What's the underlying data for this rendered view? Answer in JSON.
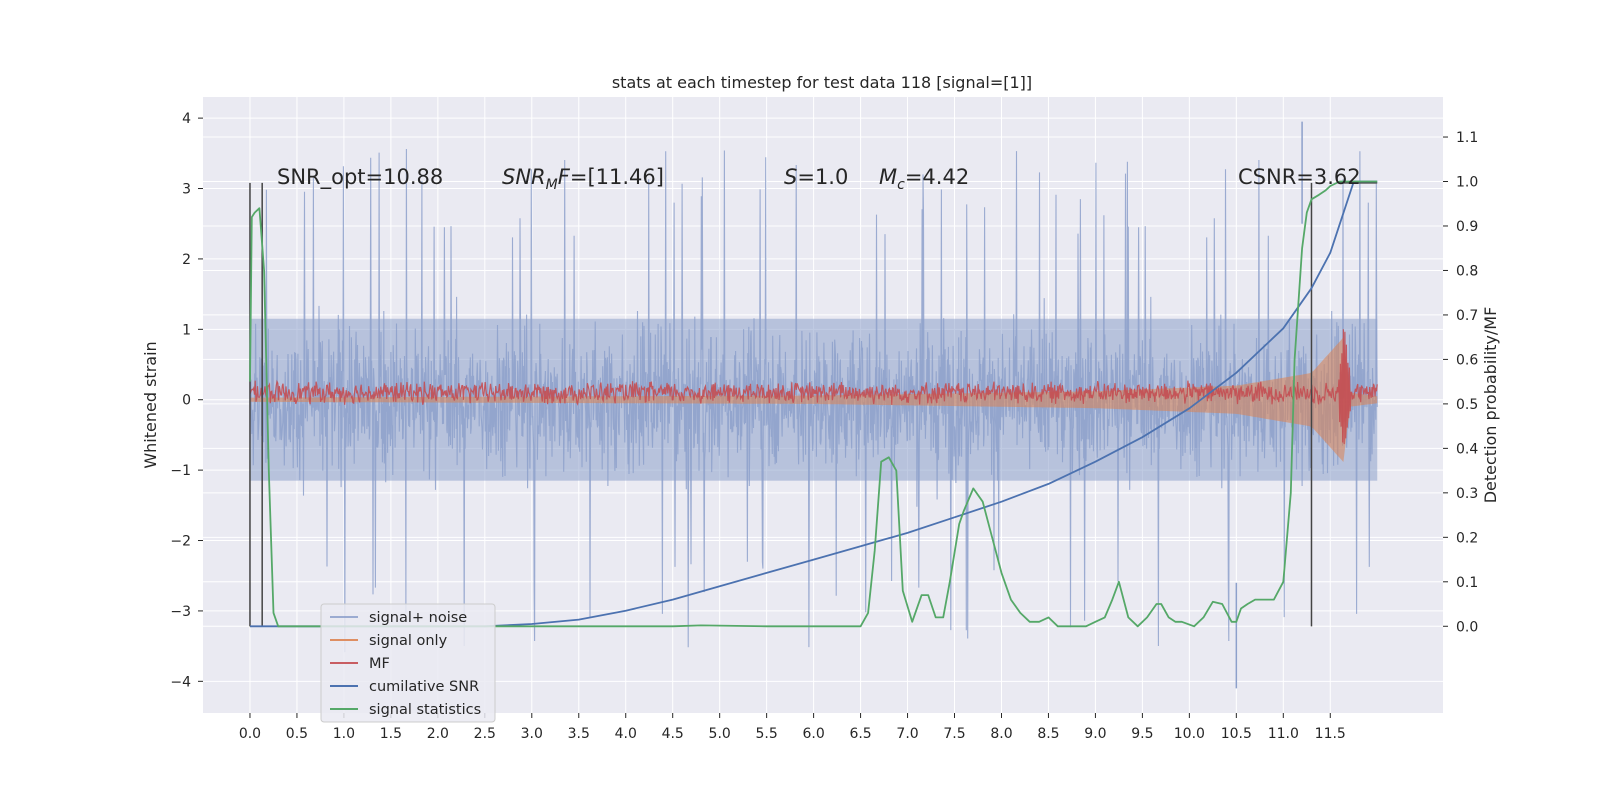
{
  "chart_data": {
    "type": "line",
    "title": "stats at each timestep for test data 118 [signal=[1]]",
    "xlabel": "",
    "ylabel": "Whitened strain",
    "y2label": "Detection probability/MF",
    "xlim": [
      -0.5,
      12.7
    ],
    "ylim": [
      -4.45,
      4.3
    ],
    "y2lim": [
      -0.195,
      1.19
    ],
    "xticks": [
      0.0,
      0.5,
      1.0,
      1.5,
      2.0,
      2.5,
      3.0,
      3.5,
      4.0,
      4.5,
      5.0,
      5.5,
      6.0,
      6.5,
      7.0,
      7.5,
      8.0,
      8.5,
      9.0,
      9.5,
      10.0,
      10.5,
      11.0,
      11.5
    ],
    "xtick_labels": [
      "0.0",
      "0.5",
      "1.0",
      "1.5",
      "2.0",
      "2.5",
      "3.0",
      "3.5",
      "4.0",
      "4.5",
      "5.0",
      "5.5",
      "6.0",
      "6.5",
      "7.0",
      "7.5",
      "8.0",
      "8.5",
      "9.0",
      "9.5",
      "10.0",
      "10.5",
      "11.0",
      "11.5"
    ],
    "yticks": [
      -4,
      -3,
      -2,
      -1,
      0,
      1,
      2,
      3,
      4
    ],
    "ytick_labels": [
      "−4",
      "−3",
      "−2",
      "−1",
      "0",
      "1",
      "2",
      "3",
      "4"
    ],
    "y2ticks": [
      0.0,
      0.1,
      0.2,
      0.3,
      0.4,
      0.5,
      0.6,
      0.7,
      0.8,
      0.9,
      1.0,
      1.1
    ],
    "y2tick_labels": [
      "0.0",
      "0.1",
      "0.2",
      "0.3",
      "0.4",
      "0.5",
      "0.6",
      "0.7",
      "0.8",
      "0.9",
      "1.0",
      "1.1"
    ],
    "grid": true,
    "legend_position": "lower-left",
    "series": [
      {
        "name": "signal+ noise",
        "axis": "left",
        "style": "dense-noise",
        "color": "#8da0cb",
        "x_range": [
          0.0,
          12.0
        ],
        "typical_range": [
          -1.5,
          1.5
        ],
        "extremes": [
          -4.1,
          3.95
        ]
      },
      {
        "name": "signal only",
        "axis": "left",
        "style": "envelope",
        "color": "#dd8452",
        "x_range": [
          0.0,
          12.0
        ],
        "amplitude": [
          [
            0.0,
            0.03
          ],
          [
            6.0,
            0.06
          ],
          [
            9.0,
            0.12
          ],
          [
            10.5,
            0.2
          ],
          [
            11.3,
            0.38
          ],
          [
            11.65,
            0.9
          ],
          [
            11.7,
            0.1
          ],
          [
            12.0,
            0.05
          ]
        ]
      },
      {
        "name": "MF",
        "axis": "left",
        "style": "noise-band",
        "color": "#c44e52",
        "x_range": [
          0.0,
          12.0
        ],
        "center": 0.1,
        "half_width": 0.12,
        "peak": {
          "x": 11.65,
          "y": 1.0
        }
      },
      {
        "name": "cumilative SNR",
        "axis": "right",
        "style": "line",
        "color": "#4c72b0",
        "x": [
          0.0,
          1.0,
          2.0,
          2.5,
          3.0,
          3.5,
          4.0,
          4.5,
          5.0,
          5.5,
          6.0,
          6.5,
          7.0,
          7.5,
          8.0,
          8.5,
          9.0,
          9.5,
          10.0,
          10.5,
          11.0,
          11.3,
          11.5,
          11.75,
          12.0
        ],
        "y": [
          0.0,
          0.0,
          0.0,
          0.0,
          0.005,
          0.015,
          0.035,
          0.06,
          0.09,
          0.12,
          0.15,
          0.18,
          0.21,
          0.245,
          0.28,
          0.32,
          0.37,
          0.425,
          0.49,
          0.57,
          0.67,
          0.76,
          0.84,
          1.0,
          1.0
        ]
      },
      {
        "name": "signal statistics",
        "axis": "right",
        "style": "line",
        "color": "#55a868",
        "x": [
          0.0,
          0.02,
          0.05,
          0.1,
          0.15,
          0.2,
          0.25,
          0.3,
          1.0,
          2.0,
          3.0,
          4.0,
          4.5,
          4.8,
          5.5,
          6.0,
          6.5,
          6.58,
          6.65,
          6.72,
          6.8,
          6.88,
          6.95,
          7.05,
          7.15,
          7.22,
          7.3,
          7.38,
          7.45,
          7.55,
          7.6,
          7.7,
          7.8,
          7.9,
          8.0,
          8.1,
          8.2,
          8.3,
          8.4,
          8.5,
          8.6,
          8.7,
          8.8,
          8.9,
          9.0,
          9.1,
          9.18,
          9.25,
          9.35,
          9.45,
          9.55,
          9.65,
          9.7,
          9.78,
          9.85,
          9.92,
          10.05,
          10.15,
          10.25,
          10.35,
          10.45,
          10.5,
          10.55,
          10.62,
          10.7,
          10.8,
          10.9,
          11.0,
          11.08,
          11.12,
          11.2,
          11.25,
          11.3,
          11.38,
          11.45,
          11.5,
          11.6,
          11.7,
          11.8,
          12.0
        ],
        "y": [
          0.55,
          0.92,
          0.93,
          0.94,
          0.8,
          0.35,
          0.03,
          0.0,
          0.0,
          0.0,
          0.0,
          0.0,
          0.0,
          0.002,
          0.0,
          0.0,
          0.0,
          0.03,
          0.17,
          0.37,
          0.38,
          0.35,
          0.08,
          0.01,
          0.07,
          0.07,
          0.02,
          0.02,
          0.1,
          0.23,
          0.26,
          0.31,
          0.28,
          0.2,
          0.12,
          0.06,
          0.03,
          0.01,
          0.01,
          0.02,
          0.0,
          0.0,
          0.0,
          0.0,
          0.01,
          0.02,
          0.06,
          0.1,
          0.02,
          0.0,
          0.02,
          0.05,
          0.05,
          0.02,
          0.01,
          0.01,
          0.0,
          0.02,
          0.055,
          0.05,
          0.01,
          0.01,
          0.04,
          0.05,
          0.06,
          0.06,
          0.06,
          0.1,
          0.3,
          0.6,
          0.85,
          0.93,
          0.96,
          0.97,
          0.98,
          0.99,
          1.0,
          1.0,
          1.0,
          1.0
        ]
      }
    ],
    "vertical_markers": [
      {
        "x": 0.0,
        "y_top": 3.08,
        "y_bottom": -3.22
      },
      {
        "x": 0.13,
        "y_top": 3.08,
        "y_bottom": -3.22
      },
      {
        "x": 11.3,
        "y_top": 3.08,
        "y_bottom": -3.22
      }
    ],
    "horizontal_marker": {
      "x_start": 11.6,
      "x_end": 12.0,
      "y": 3.08
    },
    "annotations": [
      {
        "key": "snr_opt",
        "text": "SNR_opt=10.88"
      },
      {
        "key": "snr_mf",
        "text": "[11.46]"
      },
      {
        "key": "s",
        "text": "=1.0"
      },
      {
        "key": "mc",
        "text": "=4.42"
      },
      {
        "key": "csnr",
        "text": "CSNR=3.62"
      }
    ]
  },
  "colors": {
    "plot_background": "#eaeaf2",
    "grid": "#ffffff",
    "marker_line": "#444444"
  }
}
